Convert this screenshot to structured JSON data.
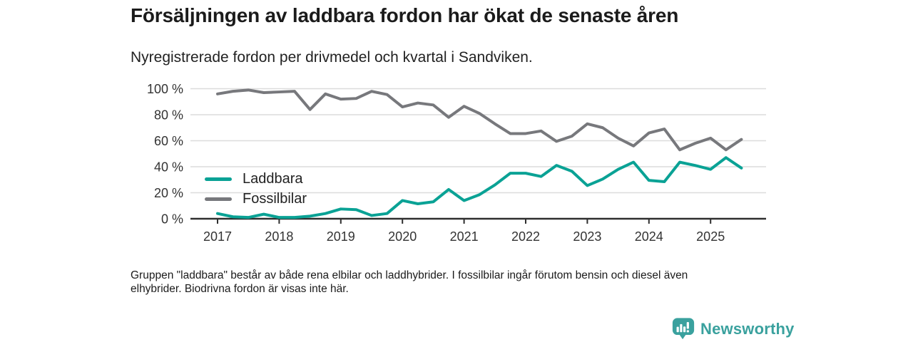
{
  "header": {
    "title": "Försäljningen av laddbara fordon har ökat de senaste åren",
    "subtitle": "Nyregistrerade fordon per drivmedel och kvartal i Sandviken."
  },
  "chart_data": {
    "type": "line",
    "x": [
      "2017 Q1",
      "2017 Q2",
      "2017 Q3",
      "2017 Q4",
      "2018 Q1",
      "2018 Q2",
      "2018 Q3",
      "2018 Q4",
      "2019 Q1",
      "2019 Q2",
      "2019 Q3",
      "2019 Q4",
      "2020 Q1",
      "2020 Q2",
      "2020 Q3",
      "2020 Q4",
      "2021 Q1",
      "2021 Q2",
      "2021 Q3",
      "2021 Q4",
      "2022 Q1",
      "2022 Q2",
      "2022 Q3",
      "2022 Q4",
      "2023 Q1",
      "2023 Q2",
      "2023 Q3",
      "2023 Q4",
      "2024 Q1",
      "2024 Q2",
      "2024 Q3",
      "2024 Q4",
      "2025 Q1",
      "2025 Q2",
      "2025 Q3"
    ],
    "series": [
      {
        "name": "Laddbara",
        "color": "#0aa295",
        "values": [
          4,
          1.5,
          1,
          3.5,
          1,
          1,
          2,
          4,
          7.5,
          7,
          2.5,
          4,
          14,
          11.5,
          13,
          22.5,
          14,
          18.5,
          26,
          35,
          35,
          32.5,
          41,
          36.5,
          25.5,
          30.5,
          38,
          43.5,
          29.5,
          28.5,
          43.5,
          41,
          38,
          47,
          39
        ]
      },
      {
        "name": "Fossilbilar",
        "color": "#77787c",
        "values": [
          96,
          98,
          99,
          97,
          97.5,
          98,
          84,
          96,
          92,
          92.5,
          98,
          95.5,
          86,
          89,
          87.5,
          78,
          86.5,
          81,
          73,
          65.5,
          65.5,
          67.5,
          59.5,
          63.5,
          73,
          70,
          62,
          56,
          66,
          69,
          53,
          58,
          62,
          53,
          61
        ]
      }
    ],
    "ylim": [
      0,
      100
    ],
    "yticks": [
      0,
      20,
      40,
      60,
      80,
      100
    ],
    "ytick_labels": [
      "0 %",
      "20 %",
      "40 %",
      "60 %",
      "80 %",
      "100 %"
    ],
    "xtick_labels": [
      "2017",
      "2018",
      "2019",
      "2020",
      "2021",
      "2022",
      "2023",
      "2024",
      "2025"
    ],
    "grid": "horizontal",
    "legend_position": "inside-left",
    "colors": {
      "grid": "#dcdcdc",
      "axis": "#2f2f2f",
      "tick_text": "#333333"
    }
  },
  "footnote": {
    "text": "Gruppen \"laddbara\" består av både rena elbilar och laddhybrider. I fossilbilar ingår förutom bensin och diesel även\nelhybrider. Biodrivna fordon är visas inte här."
  },
  "branding": {
    "logo_text": "Newsworthy",
    "logo_color": "#3aa19e"
  }
}
